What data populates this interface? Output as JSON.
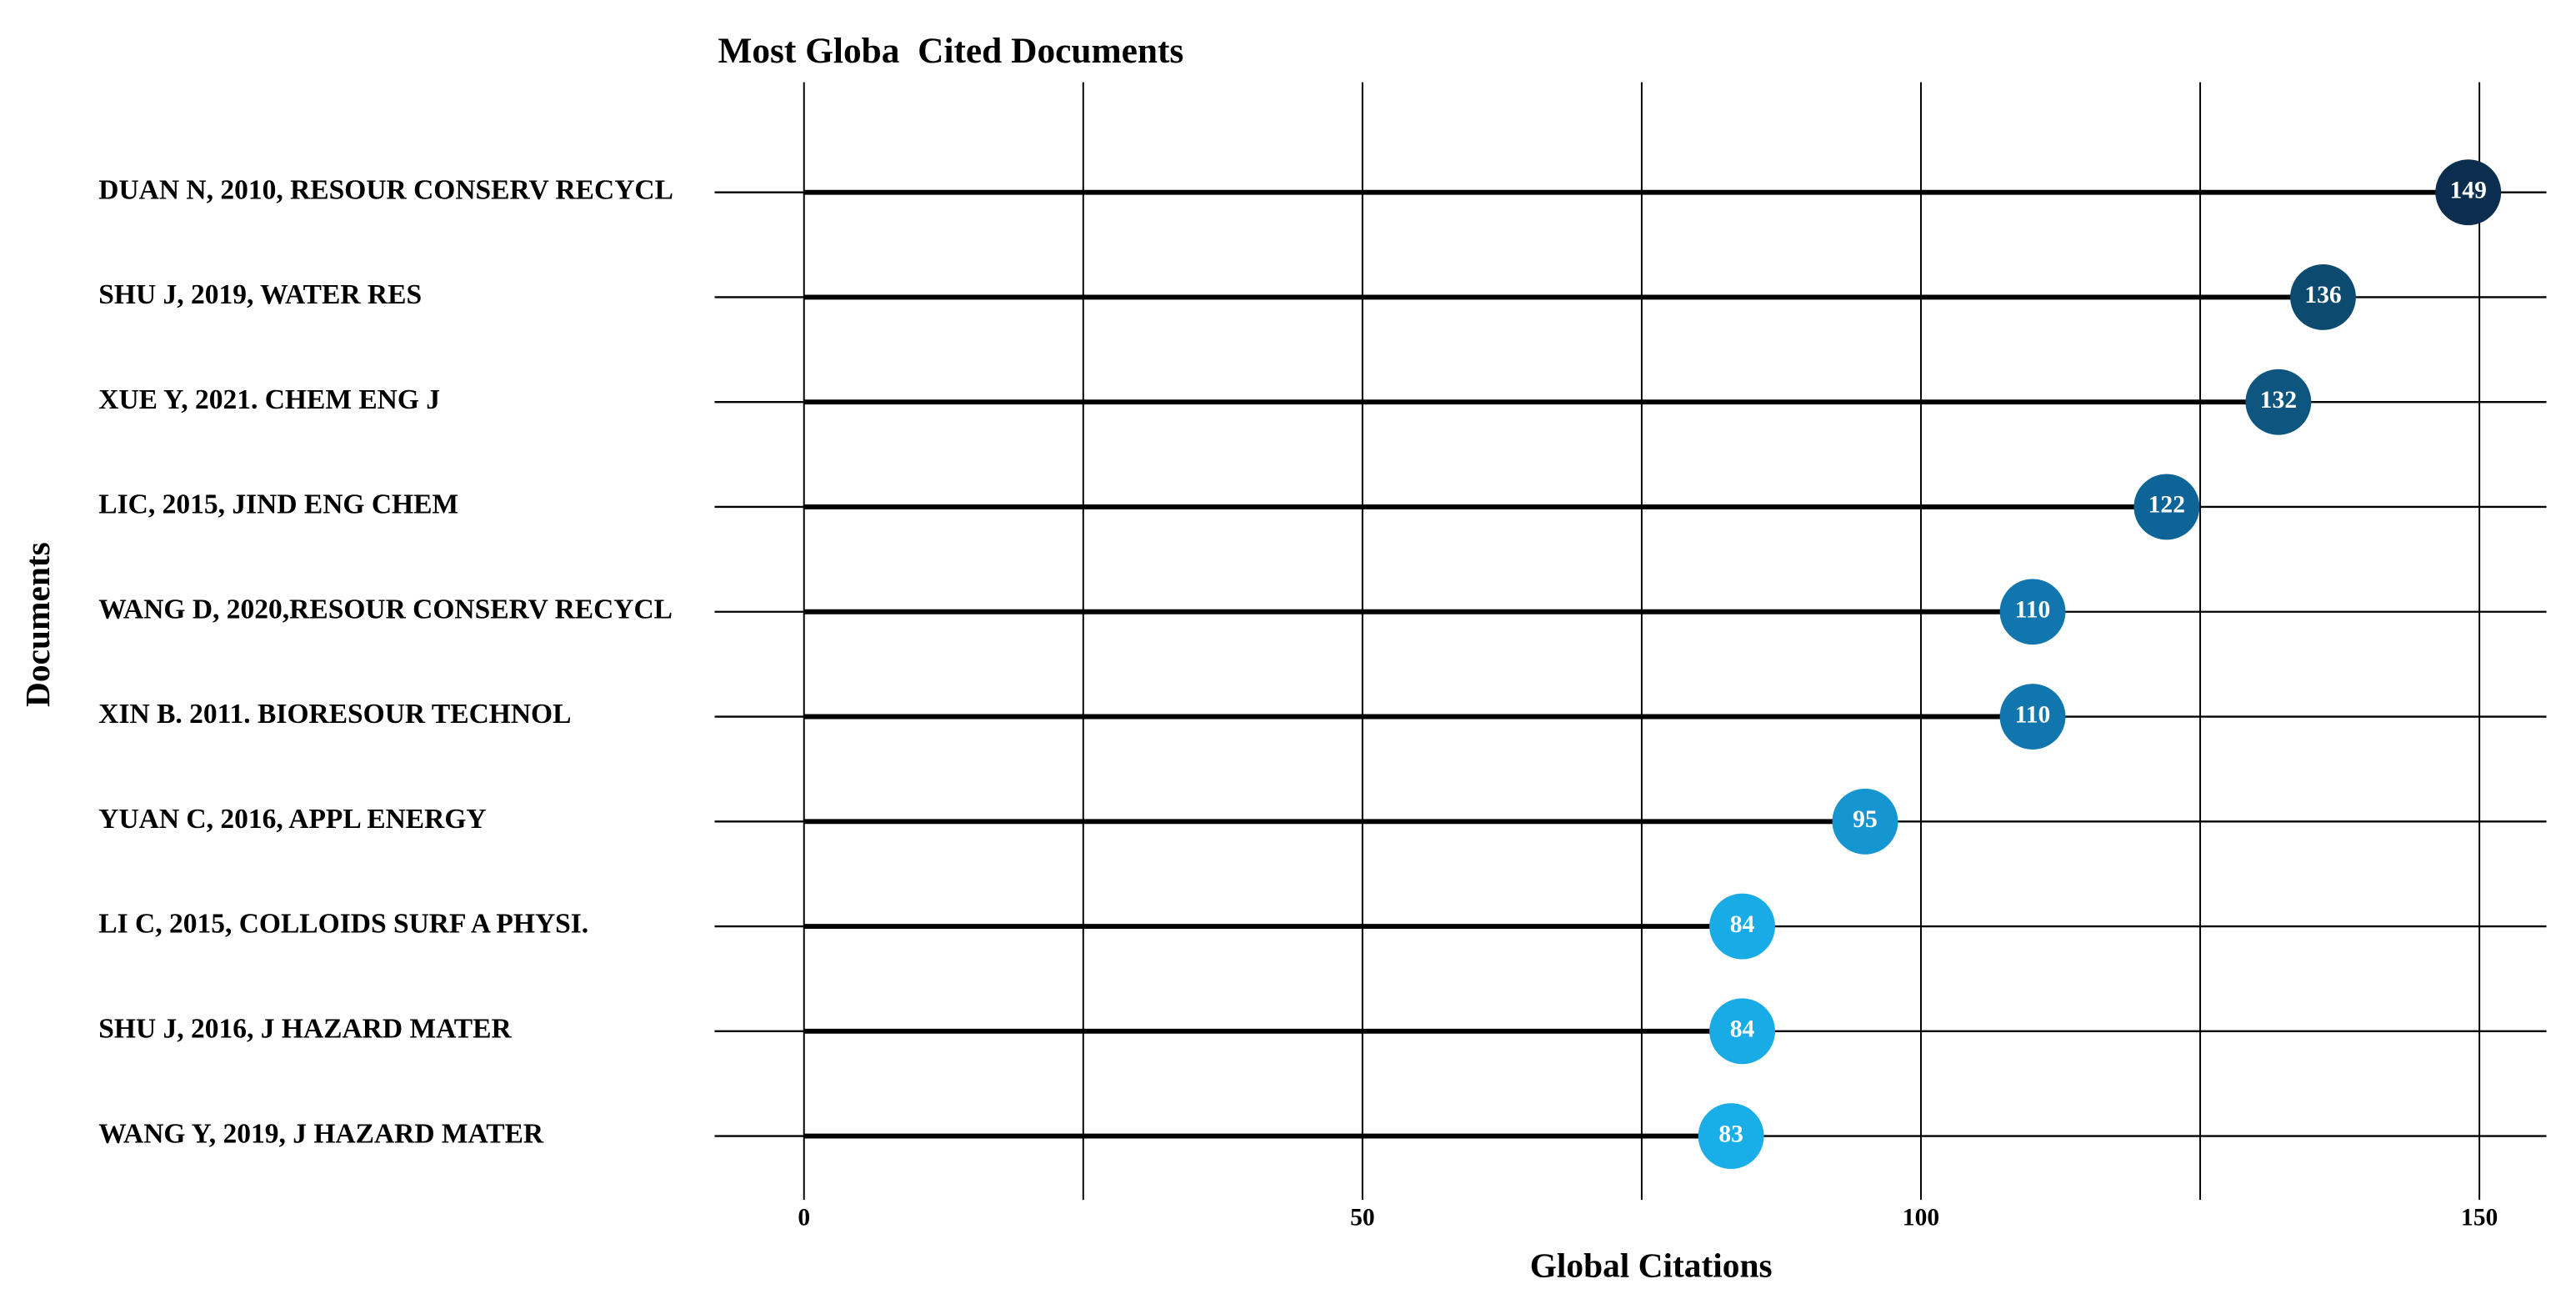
{
  "chart_data": {
    "type": "lollipop",
    "title": "Most Globa  Cited Documents",
    "x_label": "Global Citations",
    "y_label": "Documents",
    "categories": [
      "DUAN N, 2010, RESOUR CONSERV RECYCL",
      "SHU J, 2019, WATER RES",
      "XUE Y, 2021. CHEM ENG J",
      "LIC, 2015, JIND ENG CHEM",
      "WANG D, 2020,RESOUR CONSERV RECYCL",
      "XIN B. 2011. BIORESOUR TECHNOL",
      "YUAN C, 2016, APPL ENERGY",
      "LI C, 2015, COLLOIDS SURF A PHYSI.",
      "SHU J, 2016, J HAZARD MATER",
      "WANG Y, 2019, J HAZARD MATER"
    ],
    "values": [
      149,
      136,
      132,
      122,
      110,
      110,
      95,
      84,
      84,
      83
    ],
    "colors": [
      "#0b2e4f",
      "#0d4a70",
      "#0e5580",
      "#0f6497",
      "#1176ae",
      "#1176ae",
      "#1696d0",
      "#19abe6",
      "#19abe6",
      "#1aaee9"
    ],
    "xlim": [
      -8,
      156
    ],
    "xticks": [
      0,
      50,
      100,
      150
    ],
    "minor_xticks": [
      25,
      75,
      125
    ],
    "grid": true
  }
}
